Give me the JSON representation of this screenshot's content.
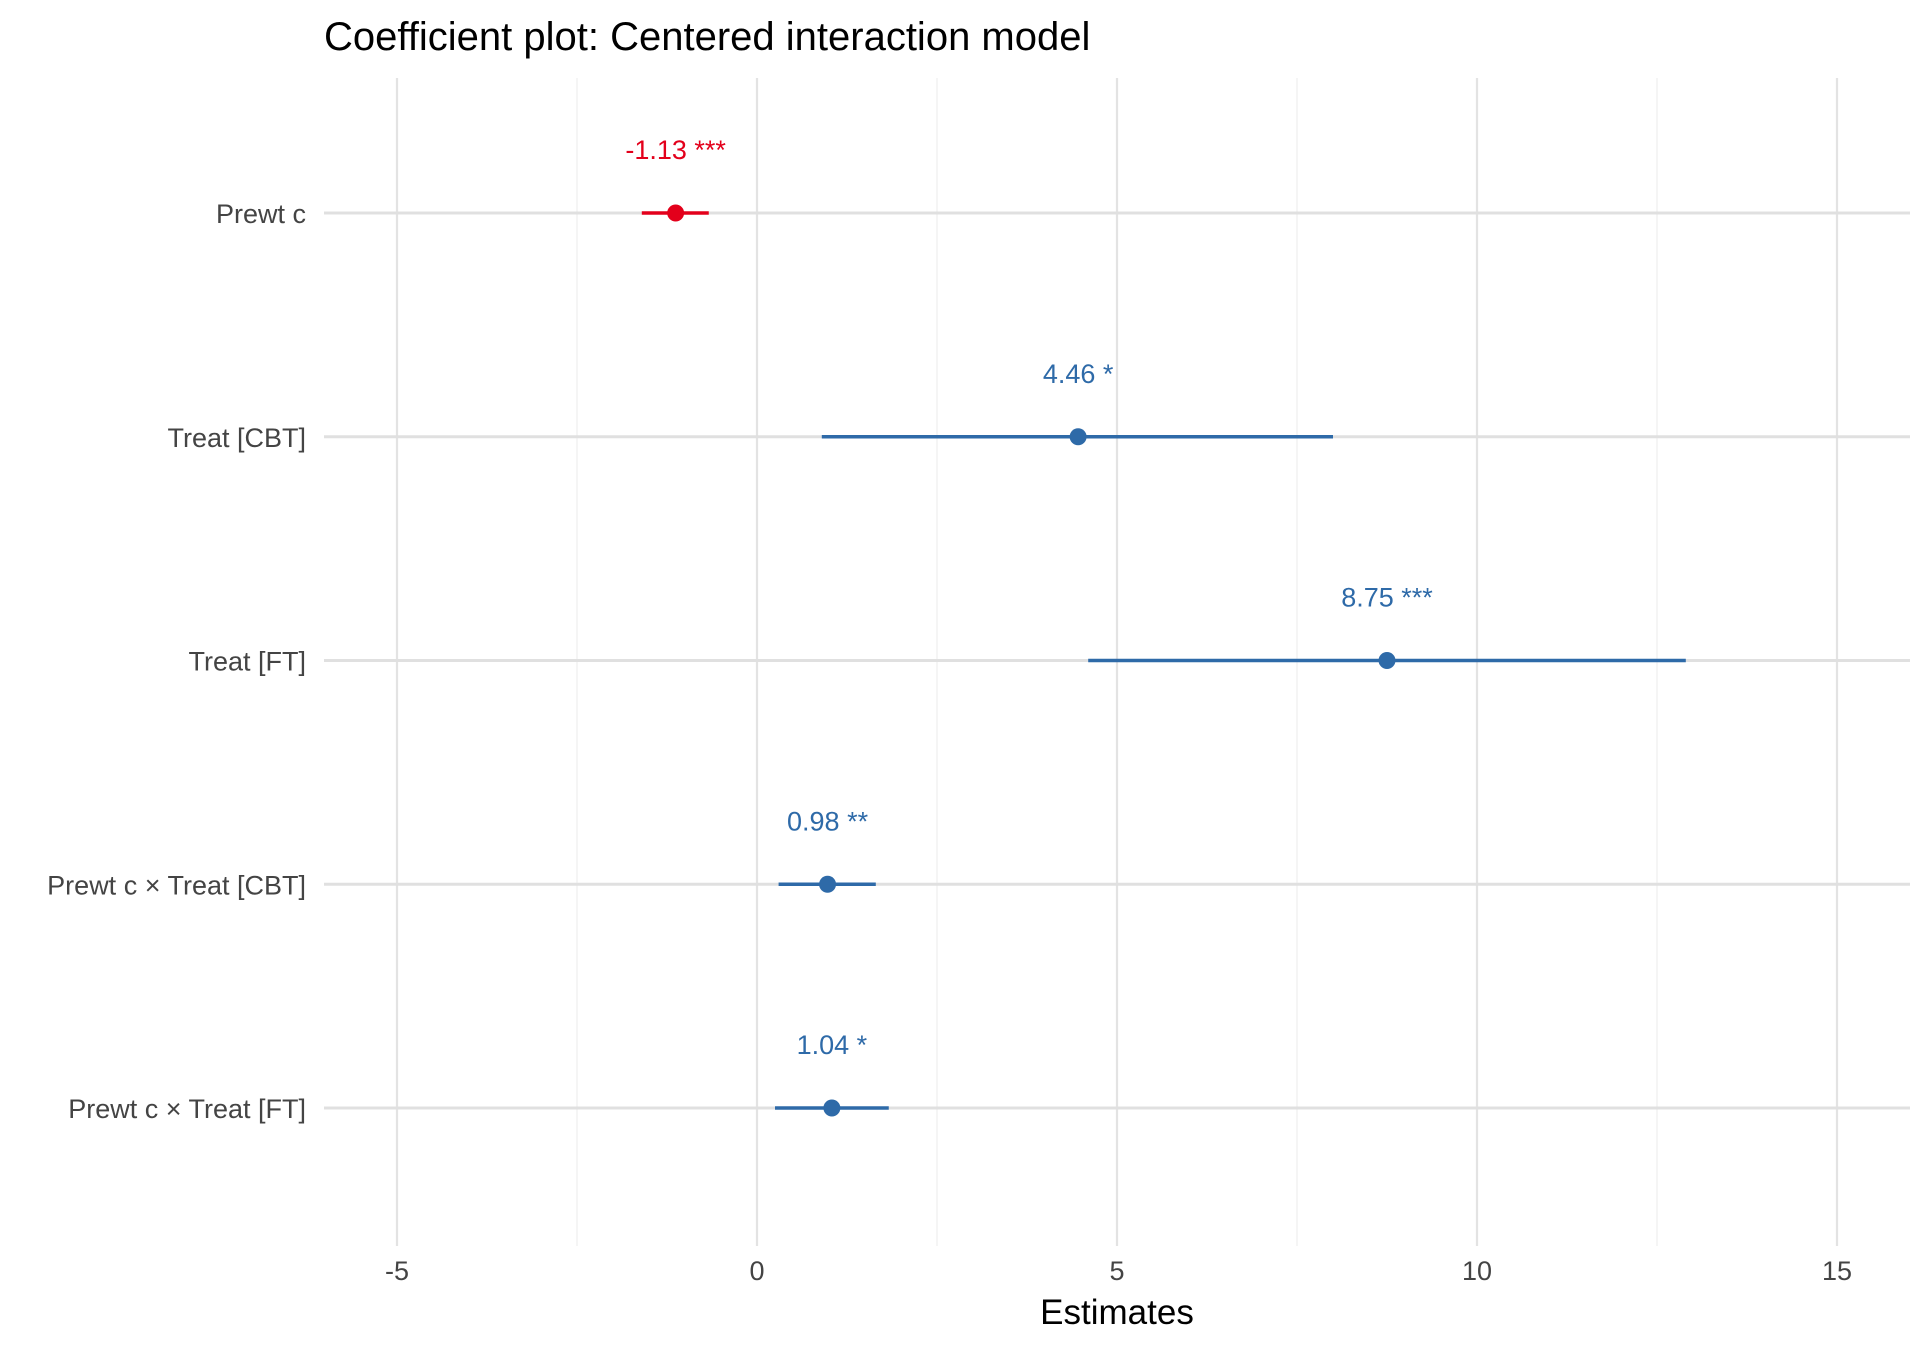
{
  "chart_data": {
    "type": "coefficient-plot",
    "title": "Coefficient plot: Centered interaction model",
    "xlabel": "Estimates",
    "ylabel": "",
    "xlim": [
      -6,
      16
    ],
    "xticks": [
      -5,
      0,
      5,
      10,
      15
    ],
    "xtick_labels": [
      "-5",
      "0",
      "5",
      "10",
      "15"
    ],
    "minor_xticks": [
      -2.5,
      2.5,
      7.5,
      12.5
    ],
    "grid": true,
    "colors": {
      "negative": "#e3001b",
      "positive": "#2e6aa8"
    },
    "terms": [
      {
        "label": "Prewt c",
        "estimate": -1.13,
        "ci_low": -1.6,
        "ci_high": -0.67,
        "value_label": "-1.13 ***",
        "sign": "negative"
      },
      {
        "label": "Treat [CBT]",
        "estimate": 4.46,
        "ci_low": 0.9,
        "ci_high": 8.0,
        "value_label": "4.46 *",
        "sign": "positive"
      },
      {
        "label": "Treat [FT]",
        "estimate": 8.75,
        "ci_low": 4.6,
        "ci_high": 12.9,
        "value_label": "8.75 ***",
        "sign": "positive"
      },
      {
        "label": "Prewt c × Treat [CBT]",
        "estimate": 0.98,
        "ci_low": 0.3,
        "ci_high": 1.65,
        "value_label": "0.98 **",
        "sign": "positive"
      },
      {
        "label": "Prewt c × Treat [FT]",
        "estimate": 1.04,
        "ci_low": 0.25,
        "ci_high": 1.83,
        "value_label": "1.04 *",
        "sign": "positive"
      }
    ]
  }
}
